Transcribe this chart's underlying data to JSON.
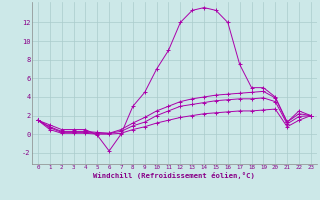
{
  "xlabel": "Windchill (Refroidissement éolien,°C)",
  "background_color": "#cce8e8",
  "grid_color": "#aacccc",
  "line_color": "#aa00aa",
  "xlim": [
    -0.5,
    23.5
  ],
  "ylim": [
    -3.2,
    14.2
  ],
  "yticks": [
    -2,
    0,
    2,
    4,
    6,
    8,
    10,
    12
  ],
  "xticks": [
    0,
    1,
    2,
    3,
    4,
    5,
    6,
    7,
    8,
    9,
    10,
    11,
    12,
    13,
    14,
    15,
    16,
    17,
    18,
    19,
    20,
    21,
    22,
    23
  ],
  "series": [
    [
      1.5,
      1.0,
      0.5,
      0.5,
      0.5,
      -0.1,
      -1.8,
      0.0,
      3.0,
      4.5,
      7.0,
      9.0,
      12.0,
      13.3,
      13.6,
      13.3,
      12.0,
      7.5,
      5.0,
      5.0,
      4.0,
      1.3,
      2.5,
      2.0
    ],
    [
      1.5,
      0.8,
      0.3,
      0.3,
      0.3,
      0.2,
      0.1,
      0.5,
      1.2,
      1.8,
      2.5,
      3.0,
      3.5,
      3.8,
      4.0,
      4.2,
      4.3,
      4.4,
      4.5,
      4.6,
      3.9,
      1.3,
      2.2,
      2.0
    ],
    [
      1.5,
      0.7,
      0.2,
      0.2,
      0.2,
      0.1,
      0.1,
      0.3,
      0.9,
      1.3,
      2.0,
      2.5,
      3.0,
      3.2,
      3.4,
      3.6,
      3.7,
      3.8,
      3.8,
      3.9,
      3.5,
      1.1,
      1.9,
      2.0
    ],
    [
      1.5,
      0.5,
      0.1,
      0.1,
      0.1,
      0.0,
      0.0,
      0.1,
      0.5,
      0.8,
      1.2,
      1.5,
      1.8,
      2.0,
      2.2,
      2.3,
      2.4,
      2.5,
      2.5,
      2.6,
      2.7,
      0.8,
      1.5,
      2.0
    ]
  ]
}
